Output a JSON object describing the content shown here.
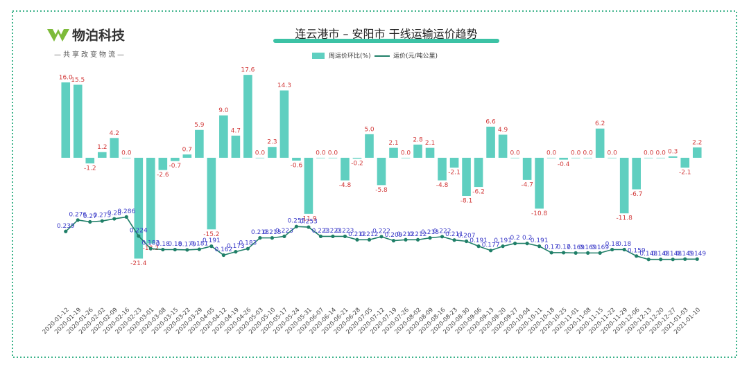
{
  "logo": {
    "name": "物泊科技",
    "slogan": "—共享改变物流—"
  },
  "chart_data": {
    "type": "bar_line",
    "title": "连云港市 – 安阳市  干线运输运价趋势",
    "categories": [
      "2020-01-12",
      "2020-01-19",
      "2020-01-26",
      "2020-02-02",
      "2020-02-09",
      "2020-02-16",
      "2020-02-23",
      "2020-03-01",
      "2020-03-08",
      "2020-03-15",
      "2020-03-22",
      "2020-03-29",
      "2020-04-05",
      "2020-04-12",
      "2020-04-19",
      "2020-04-26",
      "2020-05-03",
      "2020-05-10",
      "2020-05-17",
      "2020-05-24",
      "2020-05-31",
      "2020-06-07",
      "2020-06-14",
      "2020-06-21",
      "2020-06-28",
      "2020-07-05",
      "2020-07-12",
      "2020-07-19",
      "2020-07-26",
      "2020-08-02",
      "2020-08-09",
      "2020-08-16",
      "2020-08-23",
      "2020-08-30",
      "2020-09-06",
      "2020-09-13",
      "2020-09-20",
      "2020-09-27",
      "2020-10-04",
      "2020-10-11",
      "2020-10-18",
      "2020-10-25",
      "2020-11-01",
      "2020-11-08",
      "2020-11-15",
      "2020-11-22",
      "2020-11-29",
      "2020-12-06",
      "2020-12-13",
      "2020-12-20",
      "2020-12-27",
      "2021-01-03",
      "2021-01-10"
    ],
    "series": [
      {
        "name": "周运价环比(%)",
        "color": "#5fcfc0",
        "type": "bar",
        "values": [
          16.0,
          15.5,
          -1.2,
          1.2,
          4.2,
          0.0,
          -21.4,
          -18.2,
          -2.6,
          -0.7,
          0.7,
          5.9,
          -15.2,
          9.0,
          4.7,
          17.6,
          0.0,
          2.3,
          14.3,
          -0.6,
          -11.9,
          0.0,
          0.0,
          -4.8,
          -0.2,
          5.0,
          -5.8,
          2.1,
          0.0,
          2.8,
          2.1,
          -4.8,
          -2.1,
          -8.1,
          -6.2,
          6.6,
          4.9,
          0.0,
          -4.7,
          -10.8,
          0.0,
          -0.4,
          0.0,
          0.0,
          6.2,
          0.0,
          -11.8,
          -6.7,
          0.0,
          0.0,
          0.3,
          -2.1,
          2.2
        ],
        "value_labels": [
          "16.0",
          "15.5",
          "-1.2",
          "1.2",
          "4.2",
          "0.0",
          "-21.4",
          "-18.2",
          "-2.6",
          "-0.7",
          "0.7",
          "5.9",
          "-15.2",
          "9.0",
          "4.7",
          "17.6",
          "0.0",
          "2.3",
          "14.3",
          "-0.6",
          "-11.9",
          "0.0",
          "0.0",
          "-4.8",
          "-0.2",
          "5.0",
          "-5.8",
          "2.1",
          "0.0",
          "2.8",
          "2.1",
          "-4.8",
          "-2.1",
          "-8.1",
          "-6.2",
          "6.6",
          "4.9",
          "0.0",
          "-4.7",
          "-10.8",
          "0.0",
          "-0.4",
          "0.0",
          "0.0",
          "6.2",
          "0.0",
          "-11.8",
          "-6.7",
          "0.0",
          "0.0",
          "0.3",
          "-2.1",
          "2.2"
        ]
      },
      {
        "name": "运价(元/吨公里)",
        "color": "#1f7f68",
        "type": "line",
        "axis": "y2",
        "values": [
          0.239,
          0.276,
          0.27,
          0.273,
          0.28,
          0.286,
          0.224,
          0.183,
          0.18,
          0.18,
          0.179,
          0.181,
          0.191,
          0.162,
          0.173,
          0.183,
          0.218,
          0.218,
          0.223,
          0.255,
          0.253,
          0.223,
          0.223,
          0.223,
          0.212,
          0.212,
          0.222,
          0.209,
          0.212,
          0.212,
          0.218,
          0.222,
          0.211,
          0.207,
          0.191,
          0.177,
          0.191,
          0.2,
          0.2,
          0.191,
          0.17,
          0.17,
          0.169,
          0.169,
          0.169,
          0.18,
          0.18,
          0.159,
          0.148,
          0.148,
          0.148,
          0.149,
          0.149
        ]
      }
    ],
    "ylim": [
      -27,
      21
    ],
    "y2lim": [
      0.065,
      0.8
    ]
  }
}
